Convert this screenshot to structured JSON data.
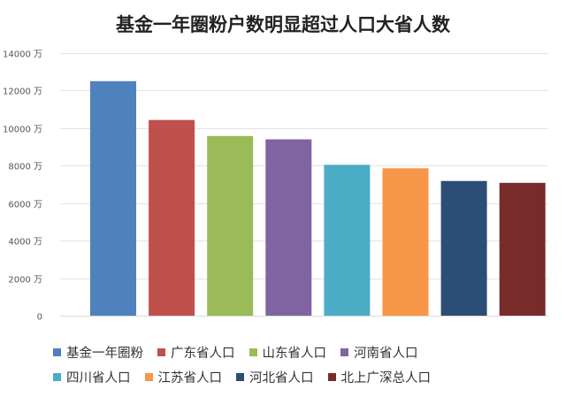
{
  "chart_data": {
    "type": "bar",
    "title": "基金一年圈粉户数明显超过人口大省人数",
    "xlabel": "",
    "ylabel": "",
    "y_unit": "万",
    "ylim": [
      0,
      14000
    ],
    "yticks": [
      0,
      2000,
      4000,
      6000,
      8000,
      10000,
      12000,
      14000
    ],
    "ytick_labels": [
      "0",
      "2000 万",
      "4000 万",
      "6000 万",
      "8000 万",
      "10000 万",
      "12000 万",
      "14000 万"
    ],
    "grid": true,
    "legend_position": "bottom",
    "categories": [
      "基金一年圈粉",
      "广东省人口",
      "山东省人口",
      "河南省人口",
      "四川省人口",
      "江苏省人口",
      "河北省人口",
      "北上广深总人口"
    ],
    "values": [
      12500,
      10430,
      9580,
      9400,
      8040,
      7860,
      7180,
      7080
    ],
    "colors": [
      "#4F81BD",
      "#C0504D",
      "#9BBB59",
      "#8064A2",
      "#4BACC6",
      "#F79646",
      "#2C4D75",
      "#772C2A"
    ]
  }
}
